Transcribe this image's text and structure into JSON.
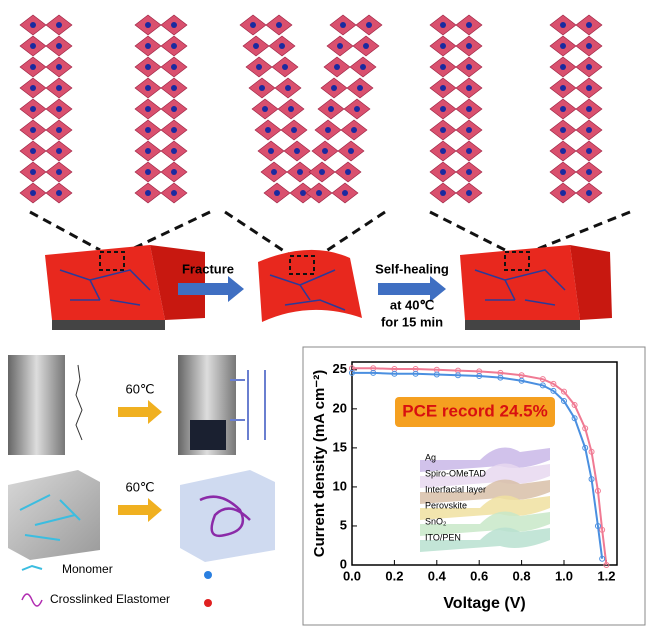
{
  "labels": {
    "fracture": "Fracture",
    "self_healing": "Self-healing",
    "healing_temp": "at 40℃",
    "healing_time": "for 15 min",
    "temp_solution": "60℃",
    "temp_cube": "60℃",
    "monomer": "Monomer",
    "elastomer": "Crosslinked Elastomer"
  },
  "chart_data": {
    "type": "line",
    "xlabel": "Voltage (V)",
    "ylabel": "Current density (mA cm⁻²)",
    "annotation": "PCE record 24.5%",
    "layers": [
      "Ag",
      "Spiro-OMeTAD",
      "Interfacial layer",
      "Perovskite",
      "SnO₂",
      "ITO/PEN"
    ],
    "x": [
      0,
      0.1,
      0.2,
      0.3,
      0.4,
      0.5,
      0.6,
      0.7,
      0.8,
      0.9,
      0.95,
      1.0,
      1.05,
      1.1,
      1.13,
      1.16,
      1.18,
      1.2
    ],
    "series": [
      {
        "color": "#f07a93",
        "values": [
          25.2,
          25.2,
          25.1,
          25.1,
          25.0,
          24.9,
          24.8,
          24.6,
          24.3,
          23.8,
          23.2,
          22.2,
          20.5,
          17.5,
          14.5,
          9.5,
          4.5,
          0
        ]
      },
      {
        "color": "#4a8fe0",
        "values": [
          24.6,
          24.6,
          24.5,
          24.5,
          24.4,
          24.3,
          24.2,
          24.0,
          23.6,
          23.0,
          22.3,
          21.0,
          18.8,
          15.0,
          11.0,
          5.0,
          0.8,
          null
        ]
      }
    ],
    "xlim": [
      0,
      1.25
    ],
    "xticks": [
      {
        "value": 0,
        "label": "0.0"
      },
      0.2,
      0.4,
      0.6,
      0.8,
      {
        "value": 1,
        "label": "1.0"
      },
      1.2
    ],
    "ylim": [
      0,
      26
    ],
    "yticks": [
      0,
      5,
      10,
      15,
      20,
      25
    ]
  }
}
